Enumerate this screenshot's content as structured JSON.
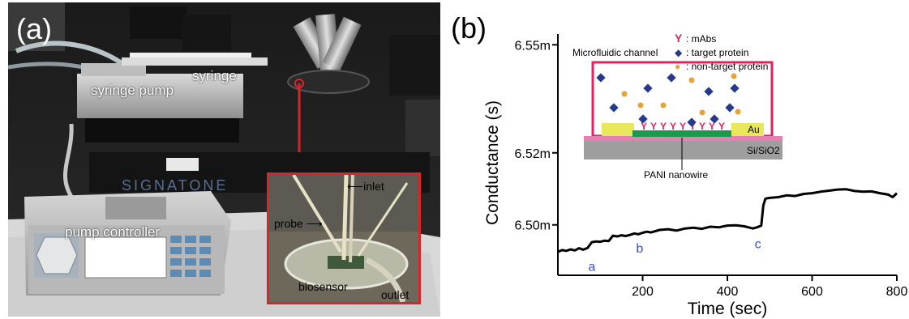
{
  "panel_a": {
    "letter": "(a)",
    "labels": {
      "syringe_pump": "syringe pump",
      "syringe": "syringe",
      "pump_controller": "pump controller",
      "inlet": "inlet",
      "probe": "probe",
      "biosensor": "biosensor",
      "outlet": "outlet"
    },
    "equipment_text": "SIGNATONE"
  },
  "panel_b": {
    "letter": "(b)",
    "inset": {
      "channel_label": "Microfluidic channel",
      "electrode_label": "Au",
      "substrate_label": "Si/SiO2",
      "nanowire_label": "PANI nanowire",
      "legend": [
        {
          "symbol": "Y",
          "text": ": mAbs",
          "color": "#e0245e"
        },
        {
          "symbol": "◆",
          "text": ": target protein",
          "color": "#253a8e"
        },
        {
          "symbol": "●",
          "text": ": non-target protein",
          "color": "#e8a23a"
        }
      ]
    }
  },
  "chart_data": {
    "type": "line",
    "xlabel": "Time (sec)",
    "ylabel": "Conductance (s)",
    "xlim": [
      0,
      800
    ],
    "ylim": [
      6.486,
      6.553
    ],
    "x_ticks": [
      200,
      400,
      600,
      800
    ],
    "x_tick_labels": [
      "200",
      "400",
      "600",
      "800"
    ],
    "y_ticks": [
      6.5,
      6.52,
      6.55
    ],
    "y_tick_labels": [
      "6.50m",
      "6.52m",
      "6.55m"
    ],
    "grid": false,
    "series": [
      {
        "x": [
          0,
          10,
          20,
          30,
          40,
          50,
          60,
          70,
          80,
          90,
          100,
          110,
          120,
          130,
          140,
          150,
          160,
          170,
          180,
          190,
          200,
          210,
          220,
          240,
          260,
          280,
          300,
          320,
          340,
          360,
          380,
          400,
          420,
          440,
          460,
          470,
          480,
          485,
          490,
          500,
          520,
          540,
          560,
          580,
          600,
          620,
          640,
          660,
          680,
          700,
          720,
          740,
          760,
          780,
          790,
          800
        ],
        "y": [
          6.4925,
          6.493,
          6.4928,
          6.4932,
          6.4929,
          6.4935,
          6.4931,
          6.4936,
          6.4952,
          6.4954,
          6.4953,
          6.4956,
          6.4955,
          6.497,
          6.4968,
          6.4971,
          6.4969,
          6.4972,
          6.4976,
          6.4974,
          6.4978,
          6.4981,
          6.4979,
          6.4986,
          6.4988,
          6.4984,
          6.499,
          6.4992,
          6.4989,
          6.4995,
          6.4993,
          6.4998,
          6.4999,
          6.4996,
          6.499,
          6.4993,
          6.4998,
          6.5055,
          6.5073,
          6.5075,
          6.5077,
          6.5082,
          6.508,
          6.5086,
          6.5088,
          6.5092,
          6.5095,
          6.5098,
          6.5099,
          6.5094,
          6.5092,
          6.5093,
          6.5088,
          6.5084,
          6.5077,
          6.5088
        ]
      }
    ],
    "annotations": [
      {
        "text": "a",
        "x": 80,
        "y": 6.4895
      },
      {
        "text": "b",
        "x": 193,
        "y": 6.4945
      },
      {
        "text": "c",
        "x": 472,
        "y": 6.4958
      }
    ]
  }
}
